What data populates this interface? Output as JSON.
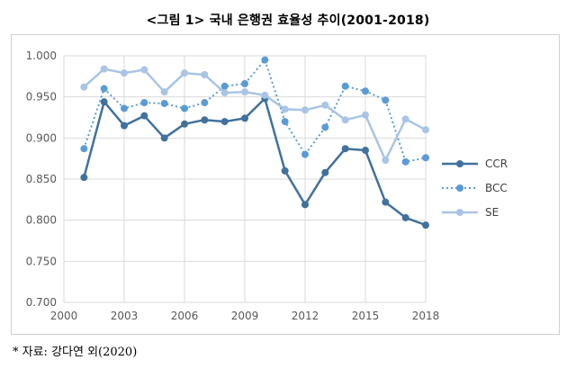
{
  "figure_title": "<그림 1> 국내 은행권 효율성 추이(2001-2018)",
  "source_note": "* 자료: 강다연 외(2020)",
  "chart_data": {
    "type": "line",
    "x": [
      2001,
      2002,
      2003,
      2004,
      2005,
      2006,
      2007,
      2008,
      2009,
      2010,
      2011,
      2012,
      2013,
      2014,
      2015,
      2016,
      2017,
      2018
    ],
    "xlim": [
      2000,
      2018
    ],
    "xticks": [
      2000,
      2003,
      2006,
      2009,
      2012,
      2015,
      2018
    ],
    "ylim": [
      0.7,
      1.0
    ],
    "yticks": [
      "0.700",
      "0.750",
      "0.800",
      "0.850",
      "0.900",
      "0.950",
      "1.000"
    ],
    "grid": true,
    "legend_position": "right",
    "series": [
      {
        "name": "CCR",
        "style": "solid",
        "color": "#41719c",
        "values": [
          0.852,
          0.944,
          0.915,
          0.927,
          0.9,
          0.917,
          0.922,
          0.92,
          0.924,
          0.948,
          0.86,
          0.819,
          0.858,
          0.887,
          0.885,
          0.822,
          0.803,
          0.794
        ]
      },
      {
        "name": "BCC",
        "style": "dotted",
        "color": "#5b9bd5",
        "values": [
          0.887,
          0.96,
          0.936,
          0.943,
          0.942,
          0.936,
          0.943,
          0.963,
          0.966,
          0.995,
          0.92,
          0.88,
          0.913,
          0.963,
          0.957,
          0.946,
          0.871,
          0.876
        ]
      },
      {
        "name": "SE",
        "style": "solid",
        "color": "#a9c4e4",
        "values": [
          0.962,
          0.984,
          0.979,
          0.983,
          0.956,
          0.979,
          0.977,
          0.955,
          0.956,
          0.952,
          0.935,
          0.934,
          0.94,
          0.922,
          0.928,
          0.873,
          0.923,
          0.91
        ]
      }
    ]
  }
}
